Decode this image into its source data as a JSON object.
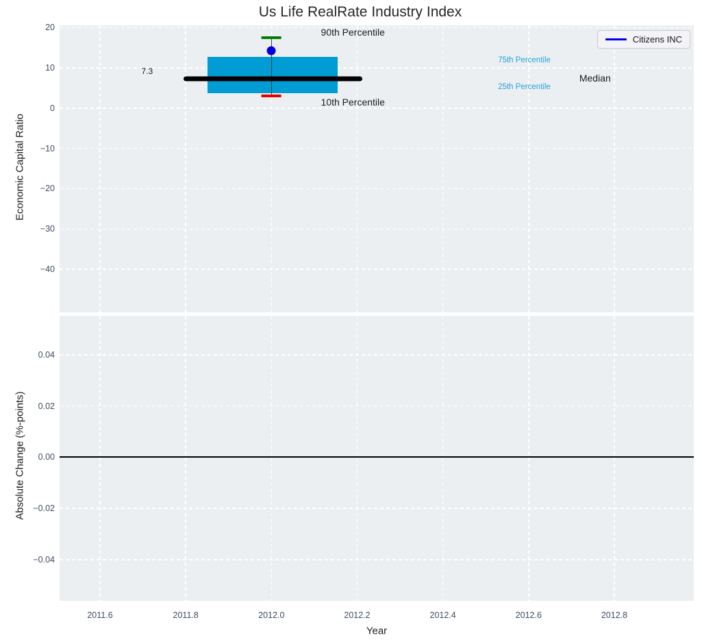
{
  "figure": {
    "title": "Us Life RealRate Industry Index"
  },
  "legend": {
    "label": "Citizens INC",
    "line_color": "#0000ee"
  },
  "colors": {
    "figure_bg": "#ffffff",
    "axes_bg": "#eceff1",
    "grid": "#ffffff",
    "tick_text": "#3f4c63",
    "label_text": "#1c1c1c",
    "box_fill": "#009cd3",
    "percentile_text": "#24a2d9",
    "median_line": "#000000",
    "p90_cap": "#008000",
    "p10_cap": "#e60000",
    "whisker": "#404040",
    "company_dot": "#0000e0",
    "zero_line": "#000000"
  },
  "chart_data": {
    "type": "box",
    "x": {
      "label": "Year",
      "lim": [
        2011.5057,
        2012.9854
      ],
      "ticks": [
        2011.6,
        2011.8,
        2012.0,
        2012.2,
        2012.4,
        2012.6,
        2012.8
      ],
      "tick_labels": [
        "2011.6",
        "2011.8",
        "2012.0",
        "2012.2",
        "2012.4",
        "2012.6",
        "2012.8"
      ],
      "grid": true
    },
    "panels": [
      {
        "type": "box",
        "ylabel": "Economic Capital Ratio",
        "ylim": [
          -50.7,
          20.55
        ],
        "yticks": [
          20,
          10,
          0,
          -10,
          -20,
          -30,
          -40
        ],
        "ytick_labels": [
          "20",
          "10",
          "0",
          "−10",
          "−20",
          "−30",
          "−40"
        ],
        "grid": true,
        "box": {
          "year": 2012.0,
          "x_center": 2012.0,
          "box_left": 2011.851,
          "box_right": 2012.155,
          "p90": 17.5,
          "p75": 12.7,
          "median": 7.3,
          "p25": 3.7,
          "p10": 3.0,
          "median_span": [
            2011.795,
            2012.212
          ],
          "cap_half_width": 0.023,
          "company_name": "Citizens INC",
          "company_value": 14.3
        },
        "annotations": [
          {
            "label": "90th Percentile",
            "x": 2012.19,
            "y": 18.8,
            "style": "ann-dark"
          },
          {
            "label": "10th Percentile",
            "x": 2012.19,
            "y": 1.5,
            "style": "ann-dark"
          },
          {
            "label": "75th Percentile",
            "x": 2012.59,
            "y": 11.9,
            "style": "ann-cyan"
          },
          {
            "label": "25th Percentile",
            "x": 2012.59,
            "y": 5.25,
            "style": "ann-cyan"
          },
          {
            "label": "Median",
            "x": 2012.755,
            "y": 7.45,
            "style": "ann-dark"
          },
          {
            "label": "7.3",
            "x": 2011.71,
            "y": 9.1,
            "style": "ann-small-dark"
          }
        ]
      },
      {
        "type": "line",
        "ylabel": "Absolute Change (%-points)",
        "ylim": [
          -0.0561,
          0.0552
        ],
        "yticks": [
          0.04,
          0.02,
          0.0,
          -0.02,
          -0.04
        ],
        "ytick_labels": [
          "0.04",
          "0.02",
          "0.00",
          "−0.02",
          "−0.04"
        ],
        "grid": true,
        "zero_line": 0.0
      }
    ]
  }
}
